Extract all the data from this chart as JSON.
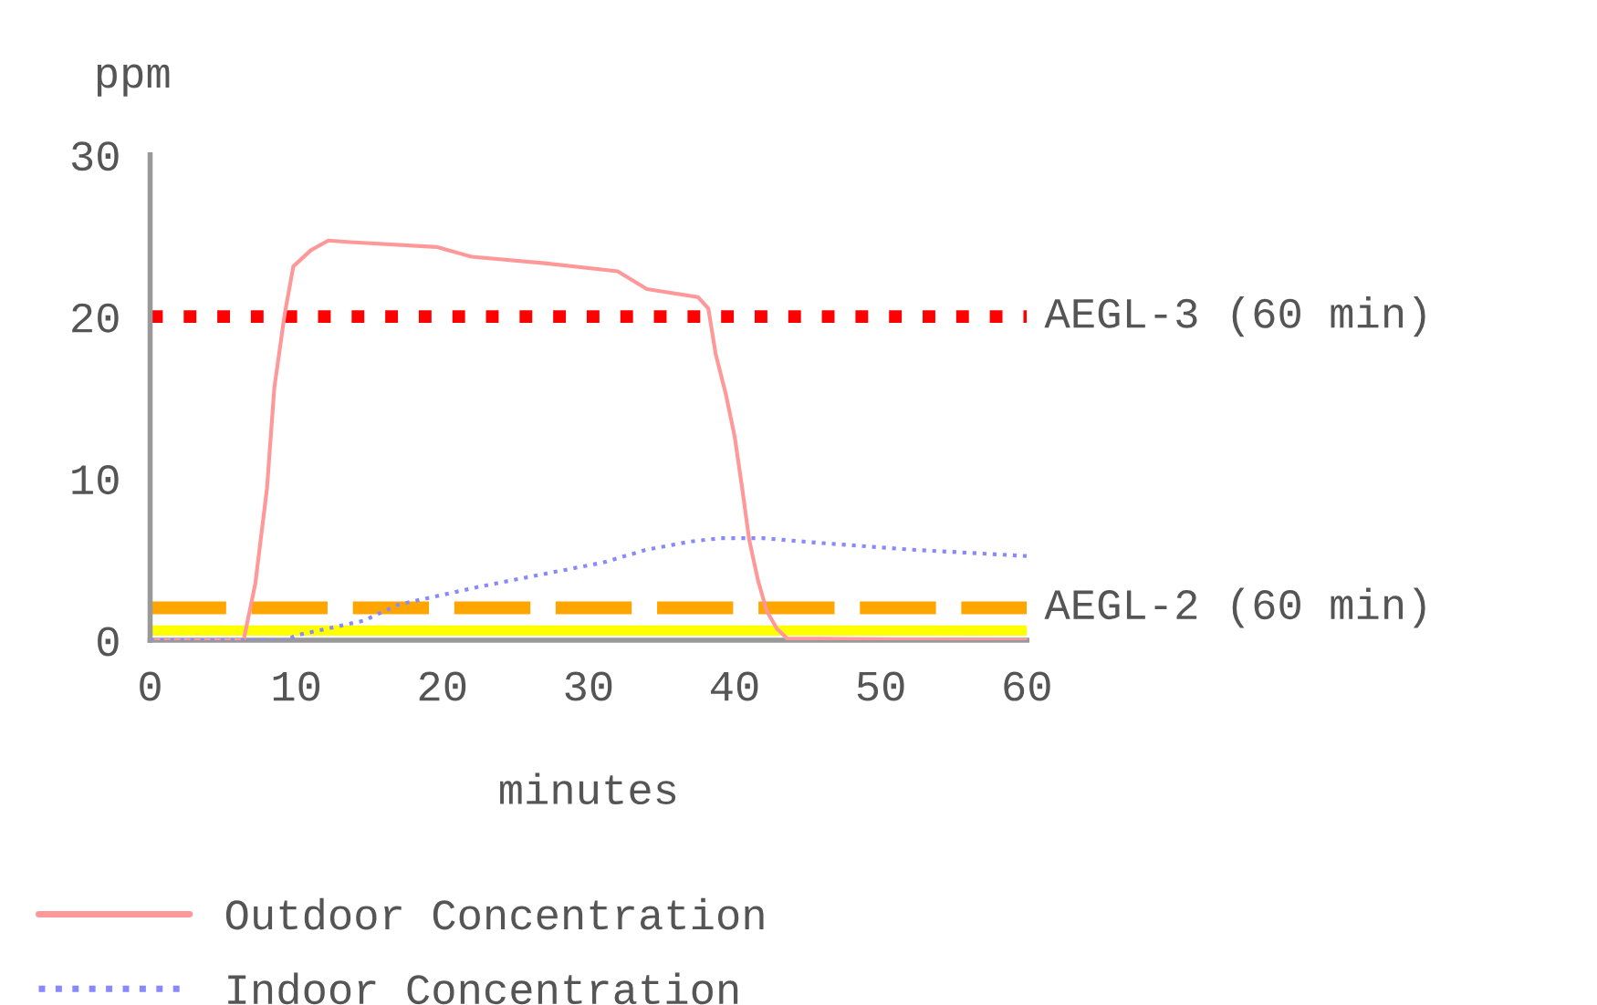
{
  "chart_data": {
    "type": "line",
    "ylabel": "ppm",
    "xlabel": "minutes",
    "xlim": [
      0,
      60
    ],
    "xticks": [
      0,
      10,
      20,
      30,
      40,
      50,
      60
    ],
    "ylim": [
      0,
      30
    ],
    "yticks": [
      0,
      10,
      20,
      30
    ],
    "grid": false,
    "legend": "bottom",
    "marker": "none",
    "series": [
      {
        "name": "Outdoor Concentration",
        "color": "#ff9999",
        "line_style": "solid",
        "x": [
          0,
          6.4,
          7.2,
          8.0,
          8.5,
          9.2,
          9.8,
          11,
          12.2,
          13.7,
          19.6,
          22,
          27,
          32,
          34,
          37.5,
          38.2,
          38.7,
          39.4,
          40,
          40.5,
          41,
          41.6,
          42.2,
          42.9,
          43.6,
          60
        ],
        "values": [
          0,
          0,
          3.5,
          9.4,
          15.6,
          20.1,
          23.1,
          24.1,
          24.7,
          24.6,
          24.3,
          23.7,
          23.3,
          22.8,
          21.7,
          21.2,
          20.5,
          17.7,
          15.2,
          12.6,
          9.5,
          6.2,
          3.7,
          1.8,
          0.7,
          0.1,
          0
        ]
      },
      {
        "name": "Indoor Concentration",
        "color": "#8888ff",
        "line_style": "dotted",
        "x": [
          0,
          9.3,
          10,
          14.6,
          17,
          20,
          22.5,
          27,
          31,
          34,
          37,
          39,
          42,
          46,
          52,
          60
        ],
        "values": [
          0,
          0,
          0.3,
          1.2,
          2.2,
          2.8,
          3.3,
          4.1,
          4.8,
          5.6,
          6.1,
          6.3,
          6.3,
          6.0,
          5.6,
          5.2
        ]
      }
    ],
    "ref_lines": [
      {
        "axis": "y",
        "value": 20,
        "label": "AEGL-3 (60 min)",
        "color": "#ff0000",
        "line_style": "dotted"
      },
      {
        "axis": "y",
        "value": 2,
        "label": "AEGL-2 (60 min)",
        "color": "#ffa500",
        "line_style": "dashed"
      },
      {
        "axis": "y",
        "value": 0.6,
        "color": "#ffff00",
        "line_style": "solid"
      }
    ]
  }
}
